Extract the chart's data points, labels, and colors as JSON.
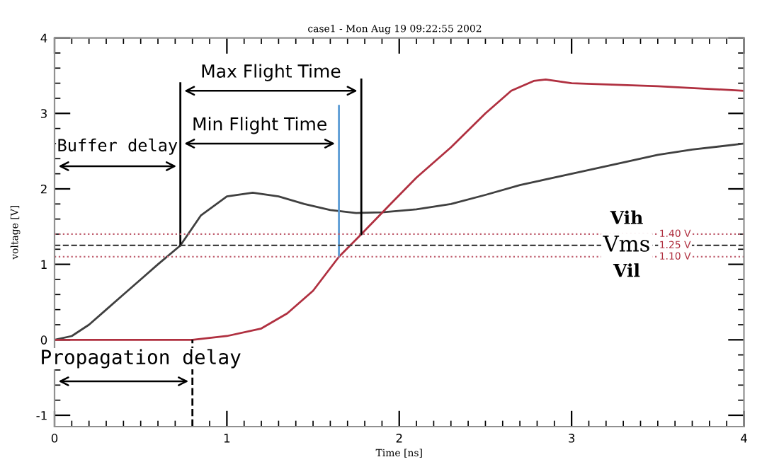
{
  "chart_data": {
    "type": "line",
    "title": "case1 - Mon Aug 19 09:22:55 2002",
    "xlabel": "Time [ns]",
    "ylabel": "voltage [V]",
    "xlim": [
      0,
      4
    ],
    "ylim": [
      -1.15,
      4
    ],
    "xticks": [
      0,
      1,
      2,
      3,
      4
    ],
    "yticks": [
      -1,
      0,
      1,
      2,
      3,
      4
    ],
    "grid": false,
    "series": [
      {
        "color": "#404040",
        "x": [
          0,
          0.1,
          0.2,
          0.3,
          0.4,
          0.5,
          0.6,
          0.73,
          0.85,
          1.0,
          1.15,
          1.3,
          1.45,
          1.6,
          1.75,
          1.9,
          2.1,
          2.3,
          2.5,
          2.7,
          3.0,
          3.3,
          3.5,
          3.7,
          4.0
        ],
        "values": [
          0,
          0.05,
          0.2,
          0.4,
          0.6,
          0.8,
          1.0,
          1.25,
          1.65,
          1.9,
          1.95,
          1.9,
          1.8,
          1.72,
          1.68,
          1.69,
          1.73,
          1.8,
          1.92,
          2.05,
          2.2,
          2.35,
          2.45,
          2.52,
          2.6
        ]
      },
      {
        "color": "#b03040",
        "x": [
          0,
          0.8,
          1.0,
          1.2,
          1.35,
          1.5,
          1.65,
          1.78,
          1.95,
          2.1,
          2.3,
          2.5,
          2.65,
          2.78,
          2.85,
          3.0,
          3.5,
          4.0
        ],
        "values": [
          0,
          0,
          0.05,
          0.15,
          0.35,
          0.65,
          1.1,
          1.4,
          1.8,
          2.15,
          2.55,
          3.0,
          3.3,
          3.43,
          3.45,
          3.4,
          3.36,
          3.3
        ]
      },
      {
        "color": "#000000",
        "x": [
          0.73,
          0.73
        ],
        "values": [
          1.25,
          3.4
        ]
      },
      {
        "color": "#000000",
        "x": [
          1.78,
          1.78
        ],
        "values": [
          1.4,
          3.45
        ]
      },
      {
        "color": "#5b9bd5",
        "x": [
          1.65,
          1.65
        ],
        "values": [
          1.1,
          3.1
        ]
      },
      {
        "color": "#000000",
        "x": [
          0.8,
          0.8
        ],
        "values": [
          -1.15,
          0
        ],
        "line_style": "dashed"
      }
    ],
    "ref_lines": [
      {
        "axis": "y",
        "value": 1.4,
        "label": "Vih",
        "color": "#c06070",
        "line_style": "dotted"
      },
      {
        "axis": "y",
        "value": 1.25,
        "label": "Vms",
        "color": "#404040",
        "line_style": "dashed"
      },
      {
        "axis": "y",
        "value": 1.1,
        "label": "Vil",
        "color": "#c06070",
        "line_style": "dotted"
      }
    ],
    "annotations": [
      "Max Flight Time",
      "Min Flight Time",
      "Buffer delay",
      "Propagation delay",
      "1.40 V",
      "1.25 V",
      "1.10 V"
    ]
  }
}
